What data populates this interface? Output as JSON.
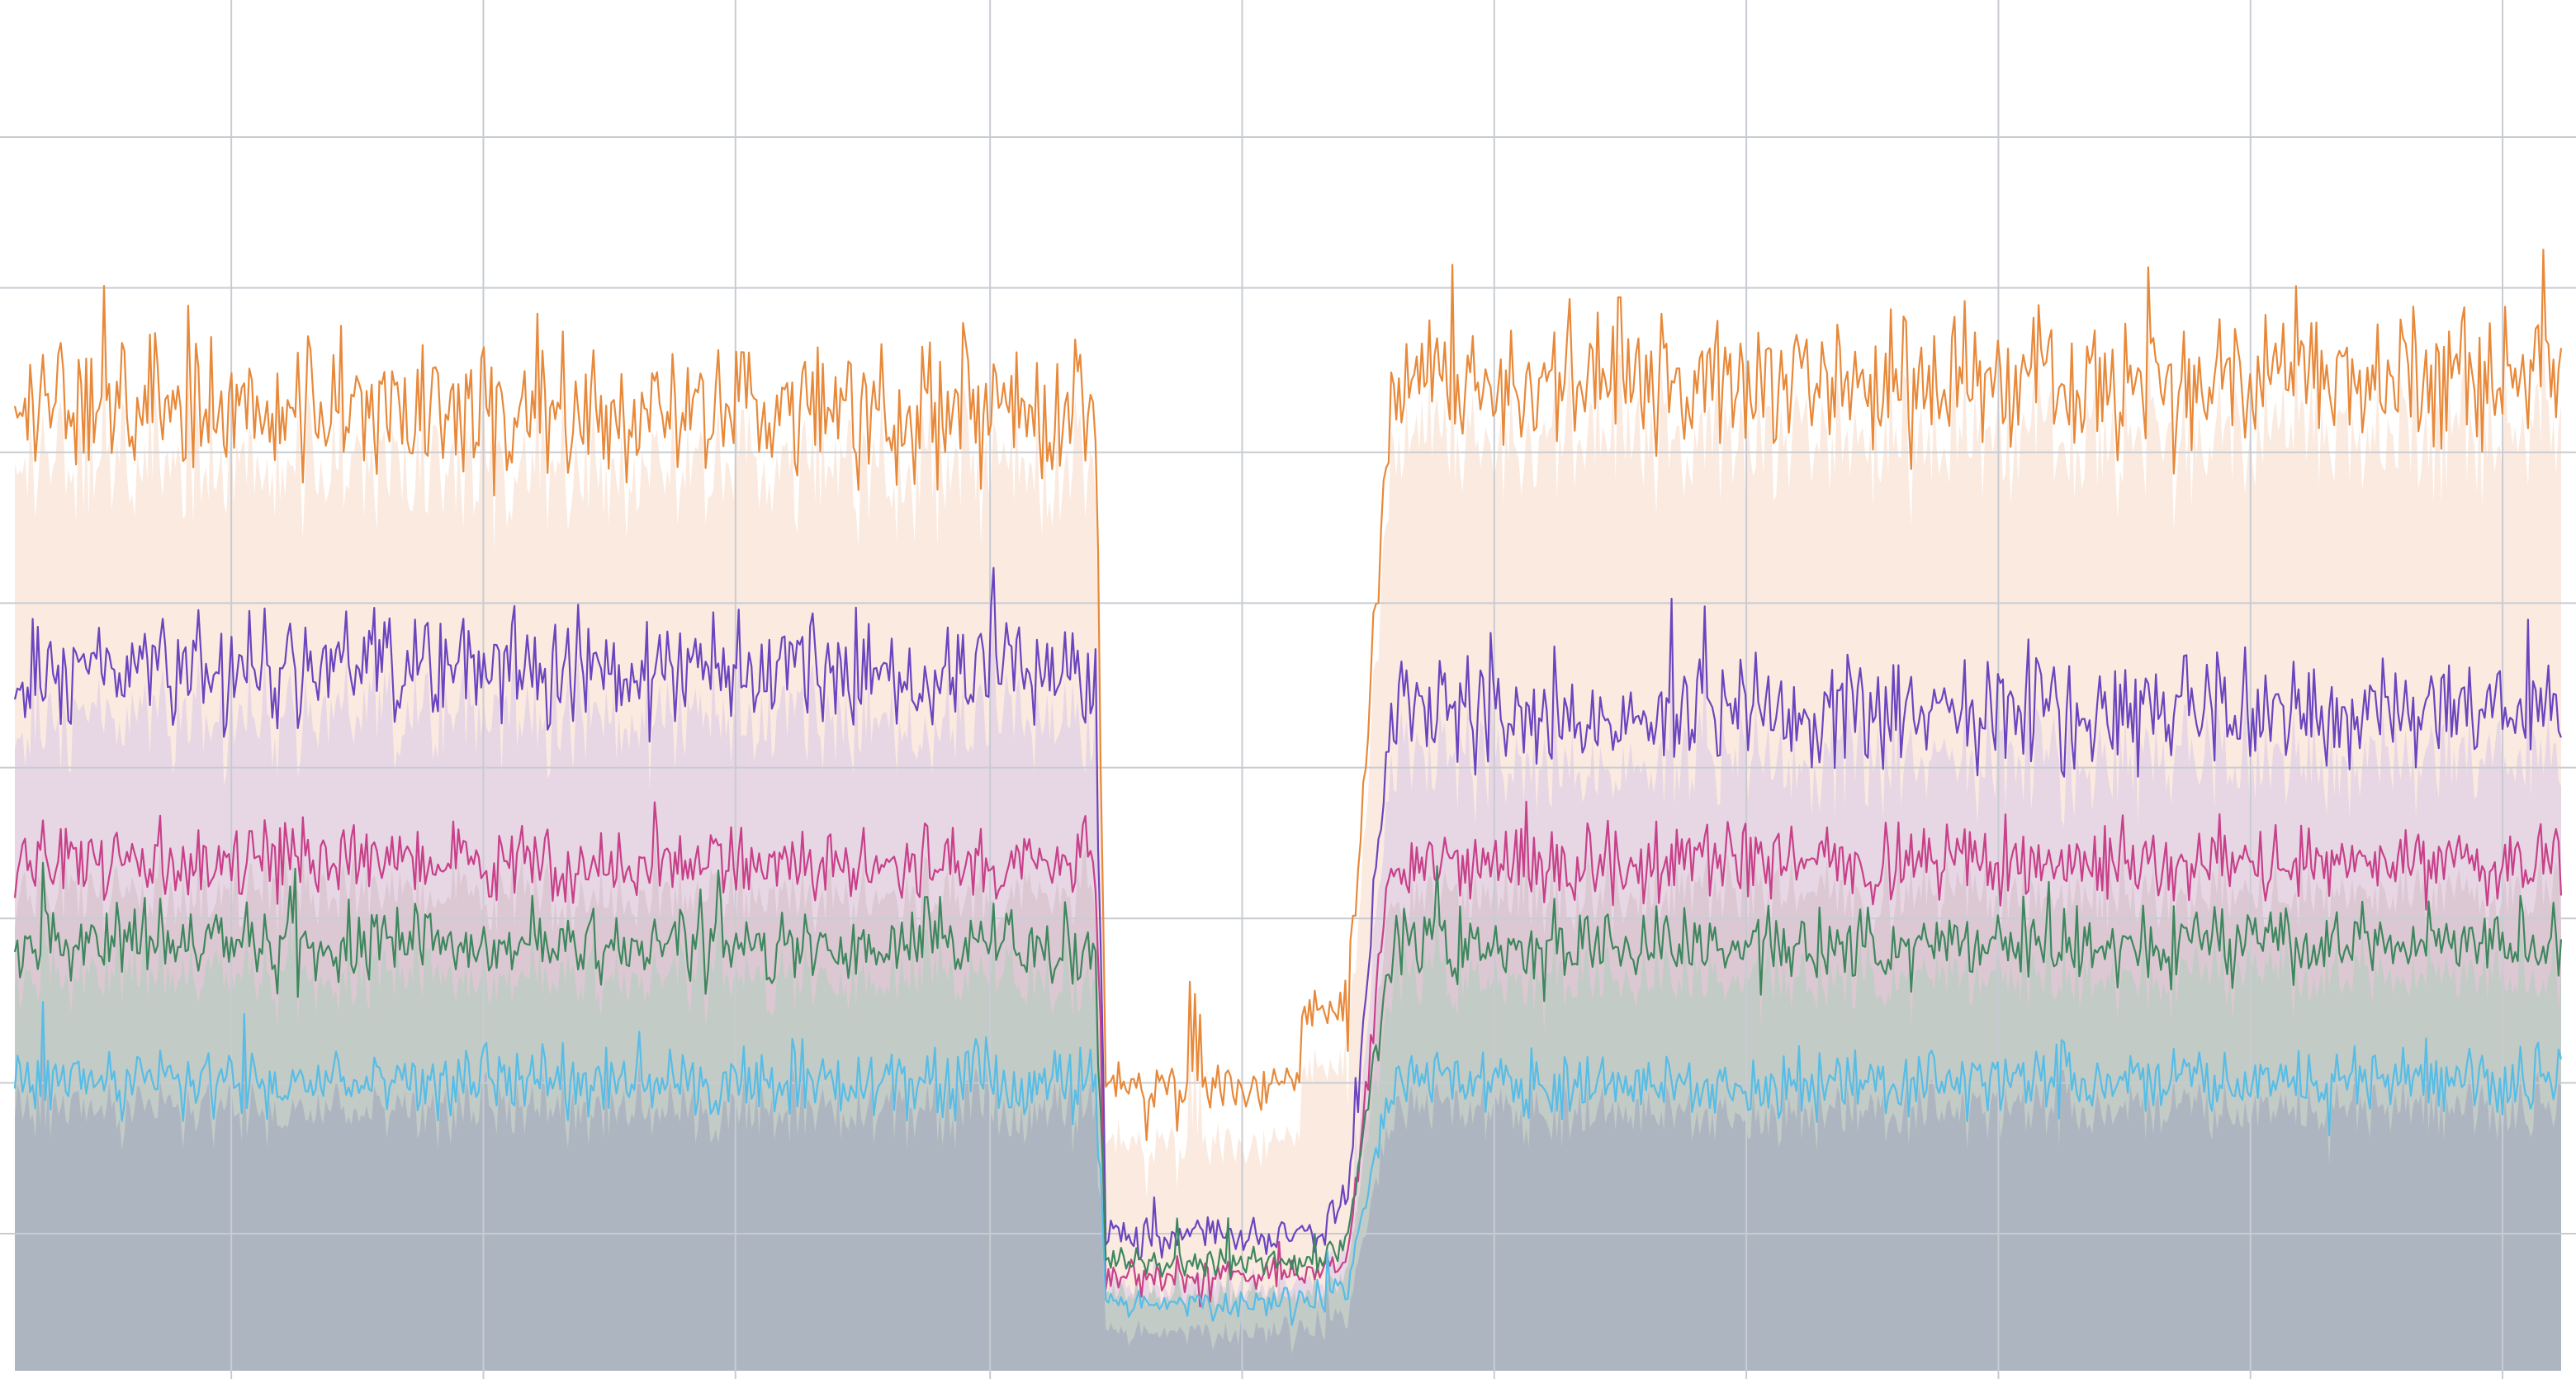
{
  "chart_data": {
    "type": "line",
    "title": "",
    "xlabel": "",
    "ylabel": "",
    "xlim": [
      0,
      1000
    ],
    "ylim": [
      0,
      100
    ],
    "grid": true,
    "legend": "none",
    "x_gridlines": [
      85,
      184,
      283,
      383,
      482,
      581,
      680,
      779,
      878,
      977
    ],
    "y_gridlines": [
      10,
      21,
      33,
      44,
      56,
      67,
      79,
      90
    ],
    "background_fill": "#adb5c1",
    "n_points": 1000,
    "dip": {
      "start": 428,
      "end": 522,
      "recovery_end": 540
    },
    "series": [
      {
        "name": "",
        "color": "#e8893a",
        "fill": "#fbeadf",
        "level": 70,
        "amplitude": 7,
        "spike": 12,
        "dip_level": 21,
        "dip_amplitude": 2.5,
        "ramp_at": 505,
        "ramp_level": 27,
        "after_dip_level": 72
      },
      {
        "name": "",
        "color": "#6a45c0",
        "fill": "#e7d6e4",
        "level": 51,
        "amplitude": 6,
        "spike": 9,
        "dip_level": 10,
        "dip_amplitude": 2,
        "ramp_at": 515,
        "ramp_level": 12,
        "after_dip_level": 48
      },
      {
        "name": "",
        "color": "#c8408a",
        "fill": "#dcc8d2",
        "level": 37,
        "amplitude": 4,
        "spike": 6,
        "dip_level": 7,
        "dip_amplitude": 1.5,
        "ramp_at": 515,
        "ramp_level": 8,
        "after_dip_level": 37
      },
      {
        "name": "",
        "color": "#3e875e",
        "fill": "#c2cbc5",
        "level": 31,
        "amplitude": 4,
        "spike": 6,
        "dip_level": 8,
        "dip_amplitude": 1.5,
        "ramp_at": 515,
        "ramp_level": 9,
        "after_dip_level": 31
      },
      {
        "name": "",
        "color": "#57bde6",
        "fill": "#adb5c1",
        "level": 21,
        "amplitude": 3.5,
        "spike": 5,
        "dip_level": 5,
        "dip_amplitude": 1.5,
        "ramp_at": 515,
        "ramp_level": 6,
        "after_dip_level": 21
      }
    ]
  }
}
